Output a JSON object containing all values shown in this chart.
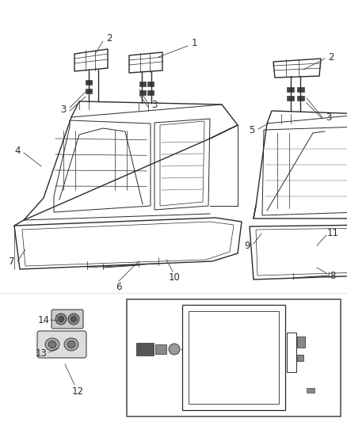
{
  "bg_color": "#ffffff",
  "line_color": "#2a2a2a",
  "label_color": "#2a2a2a",
  "fig_width": 4.38,
  "fig_height": 5.33,
  "dpi": 100,
  "font_size": 8.5
}
